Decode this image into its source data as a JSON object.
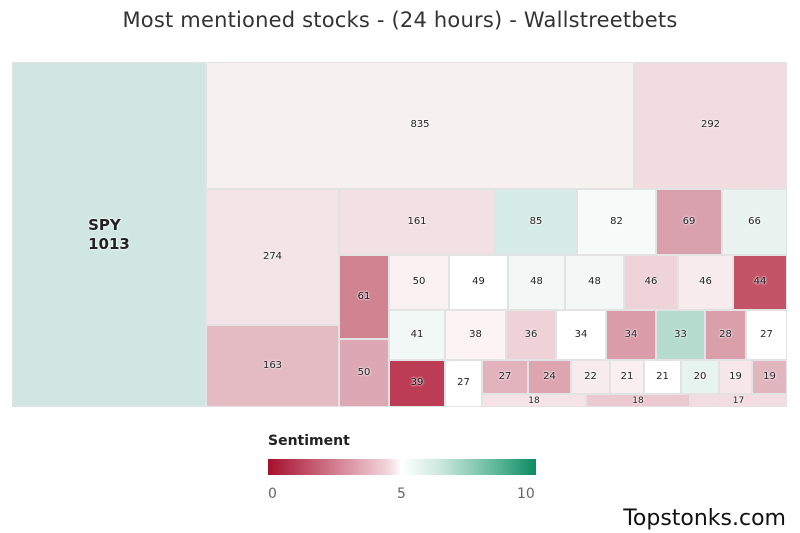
{
  "title": "Most mentioned stocks - (24 hours) - Wallstreetbets",
  "chart_data": {
    "type": "treemap",
    "title": "Most mentioned stocks - (24 hours) - Wallstreetbets",
    "colorscale": {
      "min": 0,
      "mid": 5,
      "max": 10,
      "low_color": "#a50f2d",
      "mid_color": "#ffffff",
      "high_color": "#0d8a62"
    },
    "items": [
      {
        "ticker": "SPY",
        "value": 1013,
        "color": "#cfe7e0"
      },
      {
        "ticker": "",
        "value": 835,
        "color": "#f7f0f1"
      },
      {
        "ticker": "",
        "value": 292,
        "color": "#f1dde0"
      },
      {
        "ticker": "",
        "value": 274,
        "color": "#f4e4e7"
      },
      {
        "ticker": "",
        "value": 163,
        "color": "#e4bac3"
      },
      {
        "ticker": "",
        "value": 161,
        "color": "#f3e0e4"
      },
      {
        "ticker": "",
        "value": 85,
        "color": "#d6ece6"
      },
      {
        "ticker": "",
        "value": 82,
        "color": "#f6fbf9"
      },
      {
        "ticker": "",
        "value": 69,
        "color": "#d9a1ad"
      },
      {
        "ticker": "",
        "value": 66,
        "color": "#e9f4f0"
      },
      {
        "ticker": "",
        "value": 61,
        "color": "#d08391"
      },
      {
        "ticker": "",
        "value": 50,
        "color": "#dba8b3"
      },
      {
        "ticker": "",
        "value": 50,
        "color": "#f9f0f2"
      },
      {
        "ticker": "",
        "value": 49,
        "color": "#ffffff"
      },
      {
        "ticker": "",
        "value": 48,
        "color": "#f3f8f7"
      },
      {
        "ticker": "",
        "value": 48,
        "color": "#f3f8f7"
      },
      {
        "ticker": "",
        "value": 46,
        "color": "#eed3d8"
      },
      {
        "ticker": "",
        "value": 46,
        "color": "#f8ebee"
      },
      {
        "ticker": "",
        "value": 44,
        "color": "#c35468"
      },
      {
        "ticker": "",
        "value": 41,
        "color": "#f1f8f5"
      },
      {
        "ticker": "",
        "value": 38,
        "color": "#fbf3f4"
      },
      {
        "ticker": "",
        "value": 36,
        "color": "#efd2d8"
      },
      {
        "ticker": "",
        "value": 34,
        "color": "#ffffff"
      },
      {
        "ticker": "",
        "value": 34,
        "color": "#d99ca8"
      },
      {
        "ticker": "",
        "value": 33,
        "color": "#b5dccf"
      },
      {
        "ticker": "",
        "value": 28,
        "color": "#d9a0ac"
      },
      {
        "ticker": "",
        "value": 27,
        "color": "#ffffff"
      },
      {
        "ticker": "",
        "value": 39,
        "color": "#bb3c54"
      },
      {
        "ticker": "",
        "value": 27,
        "color": "#ffffff"
      },
      {
        "ticker": "",
        "value": 27,
        "color": "#e2b3bd"
      },
      {
        "ticker": "",
        "value": 24,
        "color": "#dca5b0"
      },
      {
        "ticker": "",
        "value": 22,
        "color": "#f8ebee"
      },
      {
        "ticker": "",
        "value": 21,
        "color": "#f9eef0"
      },
      {
        "ticker": "",
        "value": 21,
        "color": "#ffffff"
      },
      {
        "ticker": "",
        "value": 20,
        "color": "#e7f3ef"
      },
      {
        "ticker": "",
        "value": 19,
        "color": "#f7e7eb"
      },
      {
        "ticker": "",
        "value": 19,
        "color": "#e2b6bf"
      },
      {
        "ticker": "",
        "value": 18,
        "color": "#f5e3e7"
      },
      {
        "ticker": "",
        "value": 18,
        "color": "#ecc8d0"
      },
      {
        "ticker": "",
        "value": 17,
        "color": "#f3dde2"
      }
    ]
  },
  "legend": {
    "title": "Sentiment",
    "ticks": [
      "0",
      "5",
      "10"
    ]
  },
  "brand": "Topstonks.com"
}
